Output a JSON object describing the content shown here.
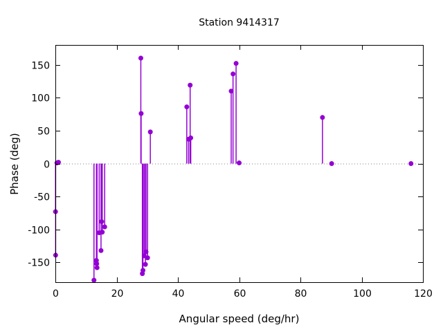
{
  "chart_data": {
    "type": "stem",
    "title": "Station 9414317",
    "xlabel": "Angular speed (deg/hr)",
    "ylabel": "Phase (deg)",
    "xlim": [
      0,
      120
    ],
    "ylim": [
      -180,
      180
    ],
    "xticks": [
      0,
      20,
      40,
      60,
      80,
      100,
      120
    ],
    "yticks": [
      -150,
      -100,
      -50,
      0,
      50,
      100,
      150
    ],
    "grid": false,
    "legend": "none",
    "zero_line": true,
    "series_color": "#9400d3",
    "axis_color": "#000000",
    "zero_line_color": "#808080",
    "marker": "circle",
    "marker_diameter_px": 7,
    "points": [
      [
        0.04,
        -73
      ],
      [
        0.08,
        -139
      ],
      [
        0.5,
        1
      ],
      [
        1.0,
        2
      ],
      [
        12.6,
        -177
      ],
      [
        13.4,
        -147
      ],
      [
        13.5,
        -152
      ],
      [
        13.6,
        -158
      ],
      [
        14.3,
        -105
      ],
      [
        14.9,
        -132
      ],
      [
        15.1,
        -88
      ],
      [
        15.3,
        -104
      ],
      [
        16.1,
        -96
      ],
      [
        27.9,
        160
      ],
      [
        28.0,
        76
      ],
      [
        28.4,
        -167
      ],
      [
        28.6,
        -162
      ],
      [
        29.0,
        -140
      ],
      [
        29.4,
        -153
      ],
      [
        29.6,
        -134
      ],
      [
        30.1,
        -143
      ],
      [
        31.0,
        48
      ],
      [
        42.9,
        86
      ],
      [
        43.5,
        37
      ],
      [
        44.0,
        119
      ],
      [
        44.2,
        39
      ],
      [
        57.4,
        110
      ],
      [
        58.0,
        136
      ],
      [
        59.0,
        152
      ],
      [
        60.0,
        1
      ],
      [
        87.2,
        70
      ],
      [
        90.2,
        0
      ],
      [
        116.1,
        0
      ]
    ]
  }
}
